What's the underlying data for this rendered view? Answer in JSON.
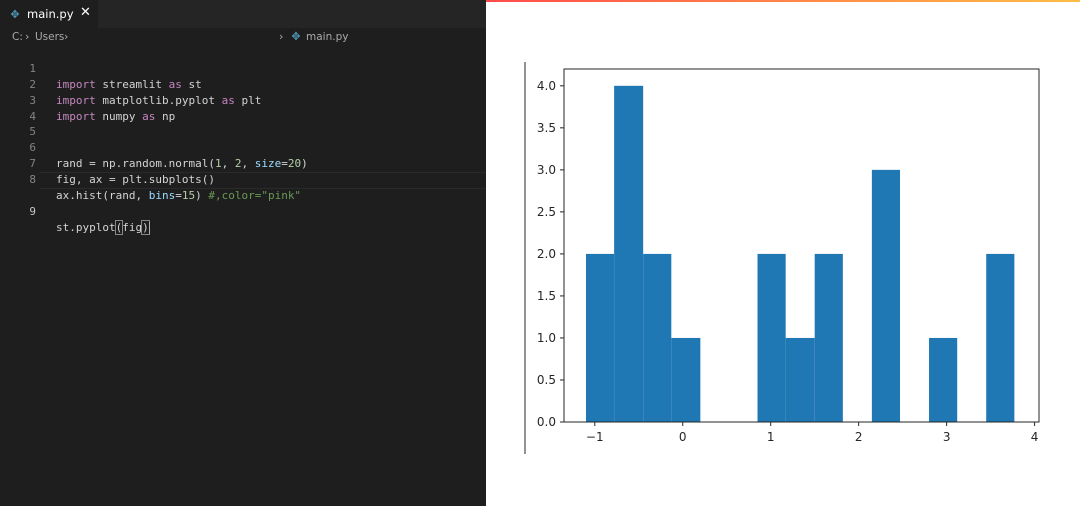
{
  "editor": {
    "tab": {
      "label": "main.py",
      "icon": "python-file-icon",
      "close_label": "✕"
    },
    "breadcrumb": {
      "drive": "C:",
      "folder": "Users",
      "file": "main.py"
    },
    "lines": [
      {
        "n": "1"
      },
      {
        "n": "2"
      },
      {
        "n": "3"
      },
      {
        "n": "4"
      },
      {
        "n": "5"
      },
      {
        "n": "6"
      },
      {
        "n": "7"
      },
      {
        "n": "8"
      },
      {
        "n": "9"
      }
    ],
    "colors": {
      "background": "#1e1e1e",
      "keyword": "#c586c0",
      "number": "#b5cea8",
      "param": "#9cdcfe",
      "comment": "#6a9955"
    }
  },
  "app": {
    "accent_gradient": [
      "#ff4b4b",
      "#ffbd45"
    ]
  },
  "chart_data": {
    "type": "bar",
    "bar_color": "#1f77b4",
    "bins": [
      {
        "x0": -1.1,
        "x1": -0.78,
        "count": 2
      },
      {
        "x0": -0.78,
        "x1": -0.45,
        "count": 4
      },
      {
        "x0": -0.45,
        "x1": -0.13,
        "count": 2
      },
      {
        "x0": -0.13,
        "x1": 0.2,
        "count": 1
      },
      {
        "x0": 0.2,
        "x1": 0.52,
        "count": 0
      },
      {
        "x0": 0.52,
        "x1": 0.85,
        "count": 0
      },
      {
        "x0": 0.85,
        "x1": 1.17,
        "count": 2
      },
      {
        "x0": 1.17,
        "x1": 1.5,
        "count": 1
      },
      {
        "x0": 1.5,
        "x1": 1.82,
        "count": 2
      },
      {
        "x0": 1.82,
        "x1": 2.15,
        "count": 0
      },
      {
        "x0": 2.15,
        "x1": 2.47,
        "count": 3
      },
      {
        "x0": 2.47,
        "x1": 2.8,
        "count": 0
      },
      {
        "x0": 2.8,
        "x1": 3.12,
        "count": 1
      },
      {
        "x0": 3.12,
        "x1": 3.45,
        "count": 0
      },
      {
        "x0": 3.45,
        "x1": 3.77,
        "count": 2
      }
    ],
    "xlim": [
      -1.35,
      4.05
    ],
    "ylim": [
      0,
      4.2
    ],
    "xticks": [
      -1,
      0,
      1,
      2,
      3,
      4
    ],
    "xtick_labels": [
      "−1",
      "0",
      "1",
      "2",
      "3",
      "4"
    ],
    "yticks": [
      0,
      0.5,
      1,
      1.5,
      2,
      2.5,
      3,
      3.5,
      4
    ],
    "ytick_labels": [
      "0.0",
      "0.5",
      "1.0",
      "1.5",
      "2.0",
      "2.5",
      "3.0",
      "3.5",
      "4.0"
    ],
    "title": "",
    "xlabel": "",
    "ylabel": "",
    "grid": false
  }
}
